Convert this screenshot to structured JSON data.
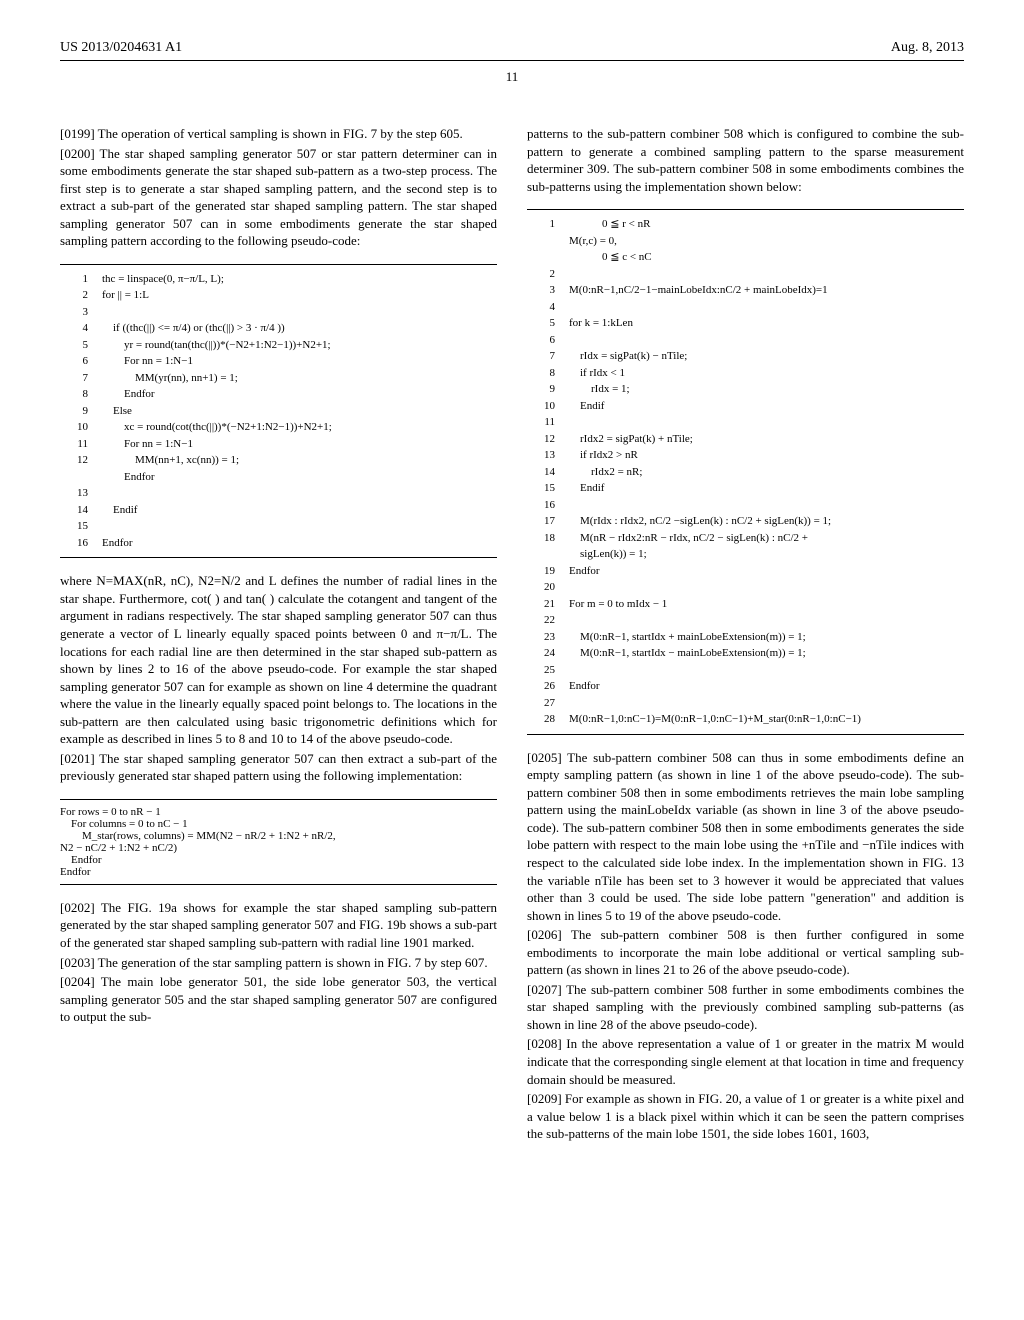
{
  "header": {
    "left": "US 2013/0204631 A1",
    "right": "Aug. 8, 2013"
  },
  "pageNumber": "11",
  "leftCol": {
    "p0199": "[0199]   The operation of vertical sampling is shown in FIG. 7 by the step 605.",
    "p0200": "[0200]   The star shaped sampling generator 507 or star pattern determiner can in some embodiments generate the star shaped sub-pattern as a two-step process. The first step is to generate a star shaped sampling pattern, and the second step is to extract a sub-part of the generated star shaped sampling pattern. The star shaped sampling generator 507 can in some embodiments generate the star shaped sampling pattern according to the following pseudo-code:",
    "code1": [
      {
        "n": "1",
        "t": "thc = linspace(0, π−π/L, L);"
      },
      {
        "n": "2",
        "t": "for || = 1:L"
      },
      {
        "n": "3",
        "t": ""
      },
      {
        "n": "4",
        "t": "    if ((thc(||) <= π/4) or (thc(||) > 3 · π/4 ))"
      },
      {
        "n": "5",
        "t": "        yr = round(tan(thc(||))*(−N2+1:N2−1))+N2+1;"
      },
      {
        "n": "6",
        "t": "        For nn = 1:N−1"
      },
      {
        "n": "7",
        "t": "            MM(yr(nn), nn+1) = 1;"
      },
      {
        "n": "8",
        "t": "        Endfor"
      },
      {
        "n": "9",
        "t": "    Else"
      },
      {
        "n": "10",
        "t": "        xc = round(cot(thc(||))*(−N2+1:N2−1))+N2+1;"
      },
      {
        "n": "11",
        "t": "        For nn = 1:N−1"
      },
      {
        "n": "12",
        "t": "            MM(nn+1, xc(nn)) = 1;"
      },
      {
        "n": "",
        "t": "        Endfor"
      },
      {
        "n": "13",
        "t": ""
      },
      {
        "n": "14",
        "t": "    Endif"
      },
      {
        "n": "15",
        "t": ""
      },
      {
        "n": "16",
        "t": "Endfor"
      }
    ],
    "p0200b": "where N=MAX(nR, nC), N2=N/2 and L defines the number of radial lines in the star shape. Furthermore, cot( ) and tan( ) calculate the cotangent and tangent of the argument in radians respectively. The star shaped sampling generator 507 can thus generate a vector of L linearly equally spaced points between 0 and π−π/L. The locations for each radial line are then determined in the star shaped sub-pattern as shown by lines 2 to 16 of the above pseudo-code. For example the star shaped sampling generator 507 can for example as shown on line 4 determine the quadrant where the value in the linearly equally spaced point belongs to. The locations in the sub-pattern are then calculated using basic trigonometric definitions which for example as described in lines 5 to 8 and 10 to 14 of the above pseudo-code.",
    "p0201": "[0201]   The star shaped sampling generator 507 can then extract a sub-part of the previously generated star shaped pattern using the following implementation:",
    "code2": "For rows = 0 to nR − 1\n    For columns = 0 to nC − 1\n        M_star(rows, columns) = MM(N2 − nR/2 + 1:N2 + nR/2,\nN2 − nC/2 + 1:N2 + nC/2)\n    Endfor\nEndfor",
    "p0202": "[0202]   The FIG. 19a shows for example the star shaped sampling sub-pattern generated by the star shaped sampling generator 507 and FIG. 19b shows a sub-part of the generated star shaped sampling sub-pattern with radial line 1901 marked.",
    "p0203": "[0203]   The generation of the star sampling pattern is shown in FIG. 7 by step 607.",
    "p0204": "[0204]   The main lobe generator 501, the side lobe generator 503, the vertical sampling generator 505 and the star shaped sampling generator 507 are configured to output the sub-"
  },
  "rightCol": {
    "p_cont": "patterns to the sub-pattern combiner 508 which is configured to combine the sub-pattern to generate a combined sampling pattern to the sparse measurement determiner 309. The sub-pattern combiner 508 in some embodiments combines the sub-patterns using the implementation shown below:",
    "code3": [
      {
        "n": "1",
        "t": "            0 ≦ r < nR"
      },
      {
        "n": "",
        "t": "M(r,c) = 0,"
      },
      {
        "n": "",
        "t": "            0 ≦ c < nC"
      },
      {
        "n": "2",
        "t": ""
      },
      {
        "n": "3",
        "t": "M(0:nR−1,nC/2−1−mainLobeIdx:nC/2 + mainLobeIdx)=1"
      },
      {
        "n": "4",
        "t": ""
      },
      {
        "n": "5",
        "t": "for k = 1:kLen"
      },
      {
        "n": "6",
        "t": ""
      },
      {
        "n": "7",
        "t": "    rIdx = sigPat(k) − nTile;"
      },
      {
        "n": "8",
        "t": "    if rIdx < 1"
      },
      {
        "n": "9",
        "t": "        rIdx = 1;"
      },
      {
        "n": "10",
        "t": "    Endif"
      },
      {
        "n": "11",
        "t": ""
      },
      {
        "n": "12",
        "t": "    rIdx2 = sigPat(k) + nTile;"
      },
      {
        "n": "13",
        "t": "    if rIdx2 > nR"
      },
      {
        "n": "14",
        "t": "        rIdx2 = nR;"
      },
      {
        "n": "15",
        "t": "    Endif"
      },
      {
        "n": "16",
        "t": ""
      },
      {
        "n": "17",
        "t": "    M(rIdx : rIdx2, nC/2 −sigLen(k) : nC/2 + sigLen(k)) = 1;"
      },
      {
        "n": "18",
        "t": "    M(nR − rIdx2:nR − rIdx, nC/2 − sigLen(k) : nC/2 +"
      },
      {
        "n": "",
        "t": "    sigLen(k)) = 1;"
      },
      {
        "n": "19",
        "t": "Endfor"
      },
      {
        "n": "20",
        "t": ""
      },
      {
        "n": "21",
        "t": "For m = 0 to mIdx − 1"
      },
      {
        "n": "22",
        "t": ""
      },
      {
        "n": "23",
        "t": "    M(0:nR−1, startIdx + mainLobeExtension(m)) = 1;"
      },
      {
        "n": "24",
        "t": "    M(0:nR−1, startIdx − mainLobeExtension(m)) = 1;"
      },
      {
        "n": "25",
        "t": ""
      },
      {
        "n": "26",
        "t": "Endfor"
      },
      {
        "n": "27",
        "t": ""
      },
      {
        "n": "28",
        "t": "M(0:nR−1,0:nC−1)=M(0:nR−1,0:nC−1)+M_star(0:nR−1,0:nC−1)"
      }
    ],
    "p0205": "[0205]   The sub-pattern combiner 508 can thus in some embodiments define an empty sampling pattern (as shown in line 1 of the above pseudo-code). The sub-pattern combiner 508 then in some embodiments retrieves the main lobe sampling pattern using the mainLobeIdx variable (as shown in line 3 of the above pseudo-code). The sub-pattern combiner 508 then in some embodiments generates the side lobe pattern with respect to the main lobe using the +nTile and −nTile indices with respect to the calculated side lobe index. In the implementation shown in FIG. 13 the variable nTile has been set to 3 however it would be appreciated that values other than 3 could be used. The side lobe pattern \"generation\" and addition is shown in lines 5 to 19 of the above pseudo-code.",
    "p0206": "[0206]   The sub-pattern combiner 508 is then further configured in some embodiments to incorporate the main lobe additional or vertical sampling sub-pattern (as shown in lines 21 to 26 of the above pseudo-code).",
    "p0207": "[0207]   The sub-pattern combiner 508 further in some embodiments combines the star shaped sampling with the previously combined sampling sub-patterns (as shown in line 28 of the above pseudo-code).",
    "p0208": "[0208]   In the above representation a value of 1 or greater in the matrix M would indicate that the corresponding single element at that location in time and frequency domain should be measured.",
    "p0209": "[0209]   For example as shown in FIG. 20, a value of 1 or greater is a white pixel and a value below 1 is a black pixel within which it can be seen the pattern comprises the sub-patterns of the main lobe 1501, the side lobes 1601, 1603,"
  }
}
